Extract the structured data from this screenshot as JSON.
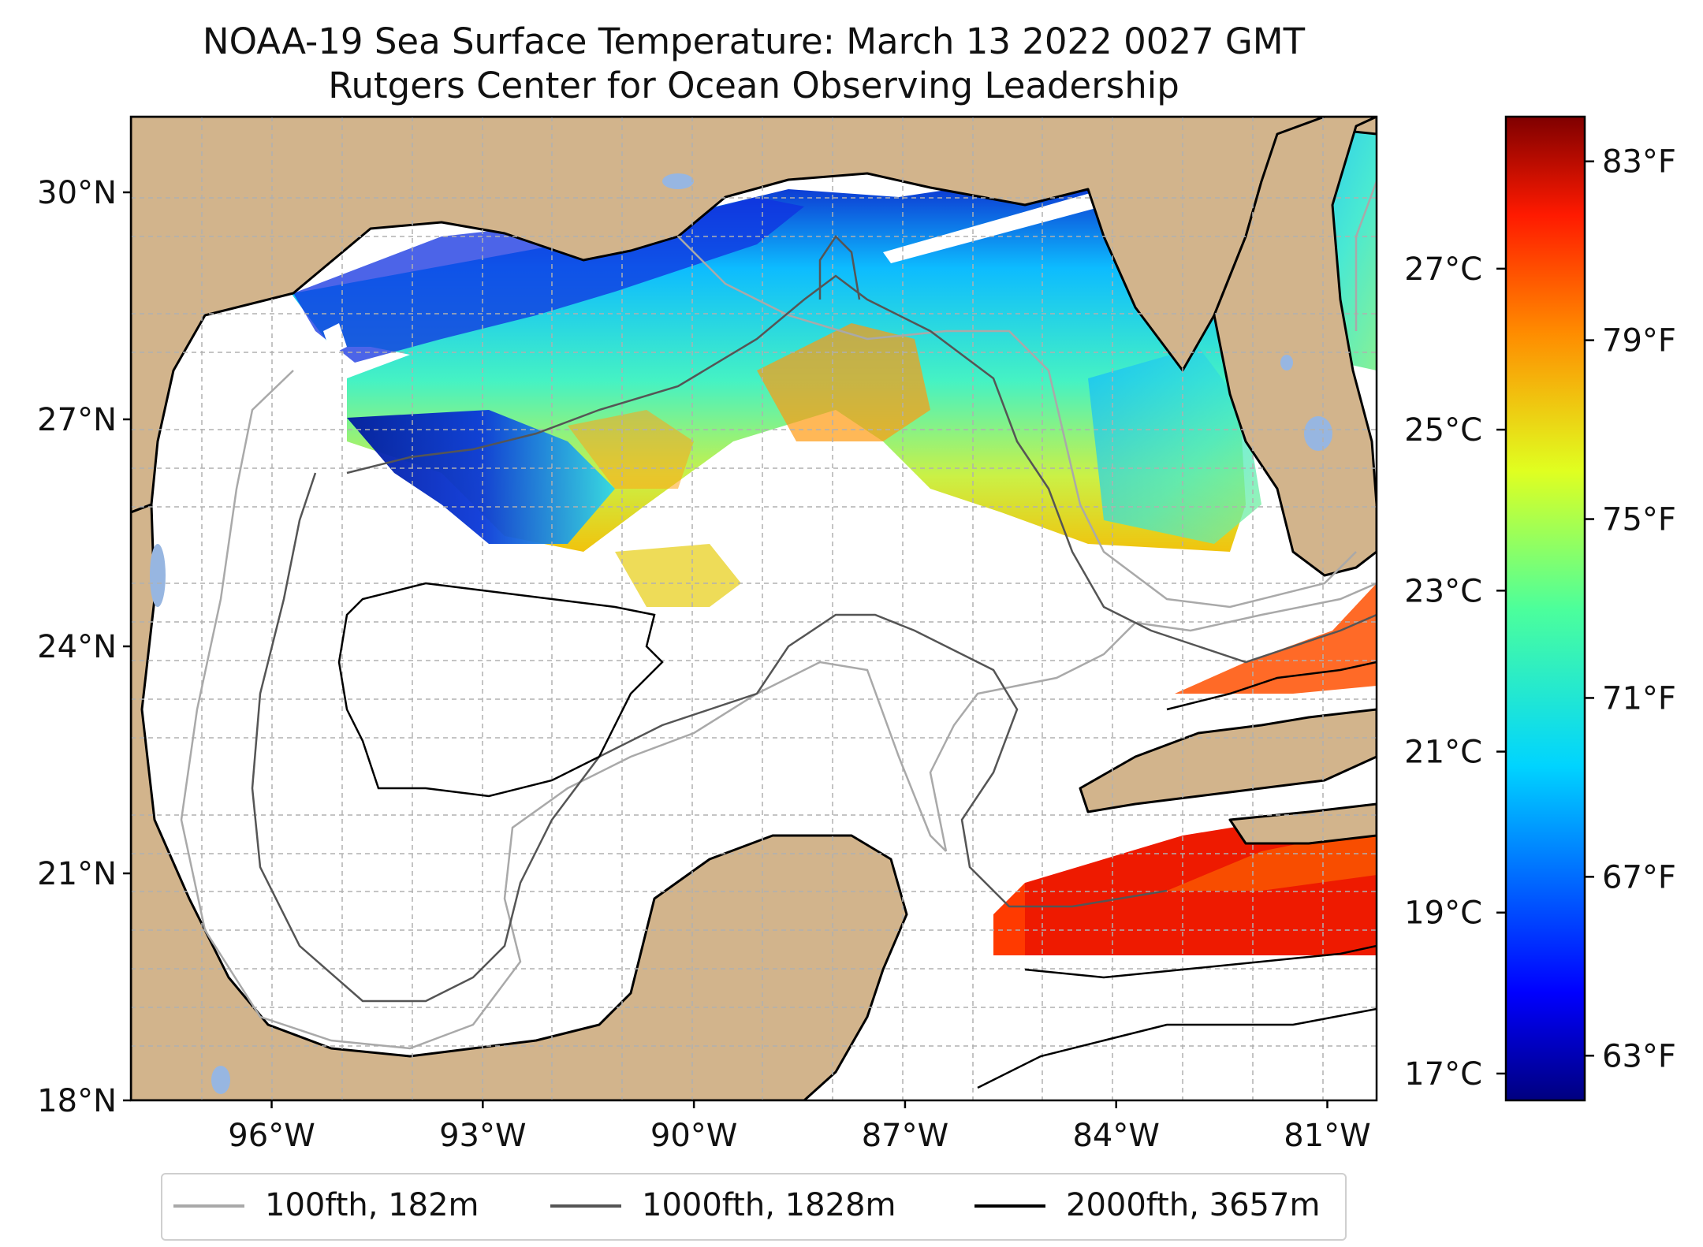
{
  "title": {
    "line1": "NOAA-19 Sea Surface Temperature: March 13 2022 0027 GMT",
    "line2": "Rutgers Center for Ocean Observing Leadership"
  },
  "map": {
    "lat_labels": [
      "30°N",
      "27°N",
      "24°N",
      "21°N",
      "18°N"
    ],
    "lat_values": [
      30,
      27,
      24,
      21,
      18
    ],
    "lon_labels": [
      "96°W",
      "93°W",
      "90°W",
      "87°W",
      "84°W",
      "81°W"
    ],
    "lon_values": [
      -96,
      -93,
      -90,
      -87,
      -84,
      -81
    ],
    "lon_range": [
      -98,
      -80.3
    ],
    "lat_range": [
      18,
      31
    ],
    "colors": {
      "land": "#d2b48c",
      "water_nodata": "#ffffff",
      "inland_water": "#97b6e1",
      "gridline": "#b0b0b0"
    }
  },
  "colorbar": {
    "colormap": "jet",
    "celsius_labels": [
      "27°C",
      "25°C",
      "23°C",
      "21°C",
      "19°C",
      "17°C"
    ],
    "celsius_values": [
      27,
      25,
      23,
      21,
      19,
      17
    ],
    "fahrenheit_labels": [
      "83°F",
      "79°F",
      "75°F",
      "71°F",
      "67°F",
      "63°F"
    ],
    "fahrenheit_values": [
      83,
      79,
      75,
      71,
      67,
      63
    ],
    "range_f": [
      62,
      84
    ]
  },
  "legend": {
    "items": [
      {
        "label": "100fth, 182m",
        "color": "#a9a9a9"
      },
      {
        "label": "1000fth, 1828m",
        "color": "#555555"
      },
      {
        "label": "2000fth, 3657m",
        "color": "#000000"
      }
    ]
  }
}
